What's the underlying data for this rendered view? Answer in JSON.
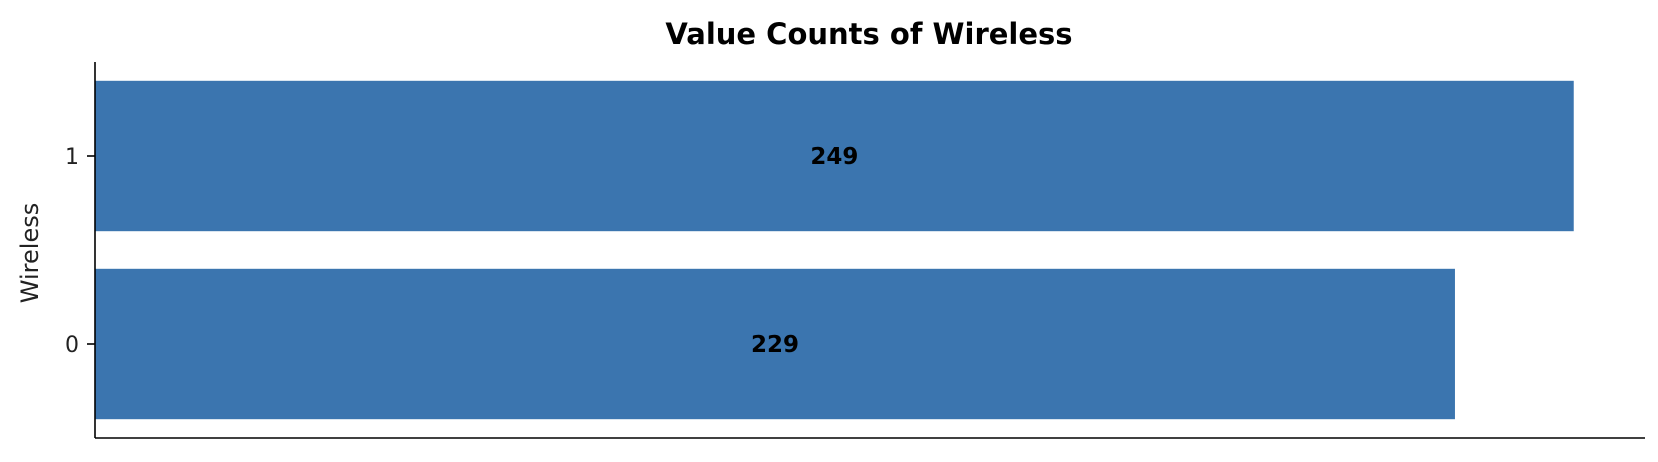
{
  "chart_data": {
    "type": "bar",
    "orientation": "horizontal",
    "title": "Value Counts of Wireless",
    "xlabel": "",
    "ylabel": "Wireless",
    "categories": [
      "0",
      "1"
    ],
    "values": [
      229,
      249
    ],
    "data_labels": [
      "229",
      "249"
    ],
    "xlim": [
      0,
      261
    ],
    "grid": false,
    "legend": "none",
    "bar_color": "#3b75af",
    "axis_color": "#000000"
  }
}
